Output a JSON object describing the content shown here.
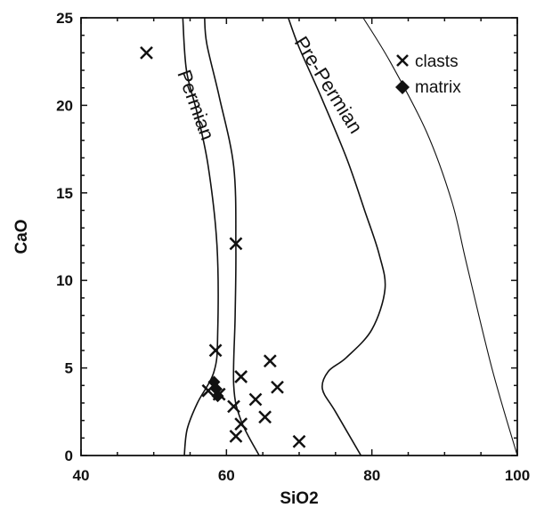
{
  "chart_data": {
    "type": "scatter",
    "xlabel": "SiO2",
    "ylabel": "CaO",
    "xlim": [
      40,
      100
    ],
    "ylim": [
      0,
      25
    ],
    "x_ticks": [
      "40",
      "60",
      "80",
      "100"
    ],
    "y_ticks": [
      "0",
      "5",
      "10",
      "15",
      "20",
      "25"
    ],
    "grid": false,
    "legend_position": "top-right",
    "series": [
      {
        "name": "clasts",
        "marker": "x",
        "points": [
          [
            49,
            23
          ],
          [
            61.3,
            12.1
          ],
          [
            58.5,
            6.0
          ],
          [
            57.5,
            3.7
          ],
          [
            59.0,
            3.5
          ],
          [
            61.0,
            2.8
          ],
          [
            62.0,
            1.8
          ],
          [
            61.3,
            1.1
          ],
          [
            62.0,
            4.5
          ],
          [
            64.0,
            3.2
          ],
          [
            65.3,
            2.2
          ],
          [
            66.0,
            5.4
          ],
          [
            67.0,
            3.9
          ],
          [
            70.0,
            0.8
          ]
        ]
      },
      {
        "name": "matrix",
        "marker": "diamond",
        "points": [
          [
            58.3,
            4.2
          ],
          [
            58.6,
            3.8
          ],
          [
            58.8,
            3.4
          ]
        ]
      }
    ],
    "region_labels": [
      "Permian",
      "Pre-Permian"
    ],
    "boundary_curves": {
      "curve_1": [
        [
          54.2,
          0
        ],
        [
          54.6,
          1.5
        ],
        [
          56.0,
          3.0
        ],
        [
          58.3,
          4.8
        ],
        [
          58.8,
          7.0
        ],
        [
          58.7,
          12.0
        ],
        [
          57.5,
          16.5
        ],
        [
          56.0,
          19.5
        ],
        [
          54.5,
          22.0
        ],
        [
          54.0,
          25
        ]
      ],
      "curve_2": [
        [
          64.5,
          0
        ],
        [
          62.0,
          2.0
        ],
        [
          61.0,
          4.0
        ],
        [
          61.2,
          8.0
        ],
        [
          61.3,
          12.0
        ],
        [
          61.0,
          16.5
        ],
        [
          59.0,
          20.5
        ],
        [
          57.3,
          23.5
        ],
        [
          57.0,
          25
        ]
      ],
      "curve_3": [
        [
          78.5,
          0
        ],
        [
          75.0,
          2.5
        ],
        [
          73.2,
          3.8
        ],
        [
          74.0,
          4.8
        ],
        [
          76.5,
          5.6
        ],
        [
          80.0,
          7.2
        ],
        [
          81.8,
          9.5
        ],
        [
          81.0,
          11.5
        ],
        [
          79.0,
          14.0
        ],
        [
          76.5,
          17.0
        ],
        [
          73.0,
          20.5
        ],
        [
          70.0,
          23.3
        ],
        [
          68.5,
          25
        ]
      ],
      "curve_4": [
        [
          100,
          0
        ],
        [
          96.5,
          5.0
        ],
        [
          93.0,
          11.0
        ],
        [
          91.0,
          14.5
        ],
        [
          87.5,
          18.5
        ],
        [
          82.5,
          22.5
        ],
        [
          78.8,
          25
        ]
      ]
    }
  }
}
